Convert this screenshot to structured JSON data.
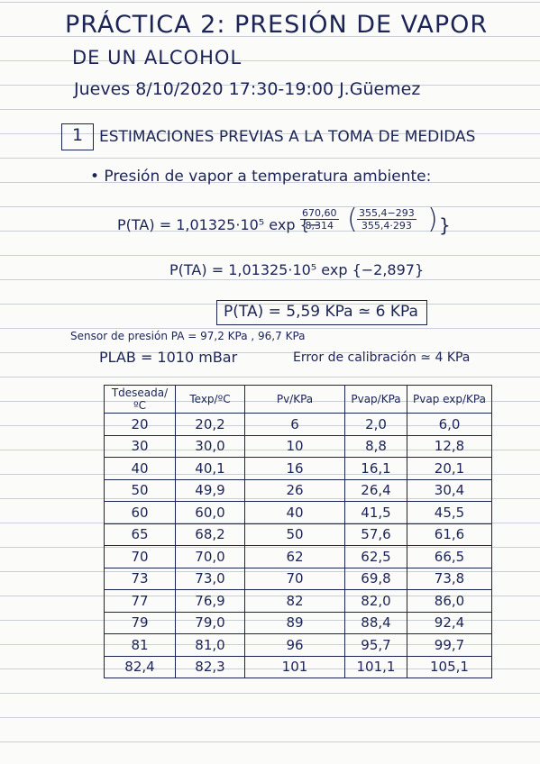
{
  "header": {
    "title_line1": "PRÁCTICA 2: PRESIÓN DE VAPOR",
    "title_line2": "DE UN ALCOHOL",
    "date_line": "Jueves 8/10/2020 17:30-19:00 J.Güemez"
  },
  "section": {
    "number": "1",
    "title": "ESTIMACIONES PREVIAS A LA TOMA DE MEDIDAS",
    "bullet": "• Presión de vapor a temperatura ambiente:"
  },
  "equations": {
    "eq1_lhs": "P(TA) = 1,01325·10⁵ exp {−",
    "eq1_frac1_num": "670,60",
    "eq1_frac1_den": "8,314",
    "eq1_frac2_num": "355,4−293",
    "eq1_frac2_den": "355,4·293",
    "eq1_close": "}",
    "eq2": "P(TA) = 1,01325·10⁵ exp {−2,897}",
    "result": "P(TA) = 5,59 KPa ≃ 6 KPa"
  },
  "notes": {
    "sensor": "Sensor de presión PA = 97,2 KPa , 96,7 KPa",
    "plab": "PLAB = 1010 mBar",
    "error": "Error de calibración ≃ 4 KPa"
  },
  "table": {
    "header": [
      "Tdeseada/ºC",
      "Texp/ºC",
      "Pv/KPa",
      "Pvap/KPa",
      "Pvap exp/KPa"
    ],
    "rows": [
      [
        "20",
        "20,2",
        "6",
        "2,0",
        "6,0"
      ],
      [
        "30",
        "30,0",
        "10",
        "8,8",
        "12,8"
      ],
      [
        "40",
        "40,1",
        "16",
        "16,1",
        "20,1"
      ],
      [
        "50",
        "49,9",
        "26",
        "26,4",
        "30,4"
      ],
      [
        "60",
        "60,0",
        "40",
        "41,5",
        "45,5"
      ],
      [
        "65",
        "68,2",
        "50",
        "57,6",
        "61,6"
      ],
      [
        "70",
        "70,0",
        "62",
        "62,5",
        "66,5"
      ],
      [
        "73",
        "73,0",
        "70",
        "69,8",
        "73,8"
      ],
      [
        "77",
        "76,9",
        "82",
        "82,0",
        "86,0"
      ],
      [
        "79",
        "79,0",
        "89",
        "88,4",
        "92,4"
      ],
      [
        "81",
        "81,0",
        "96",
        "95,7",
        "99,7"
      ],
      [
        "82,4",
        "82,3",
        "101",
        "101,1",
        "105,1"
      ]
    ]
  }
}
